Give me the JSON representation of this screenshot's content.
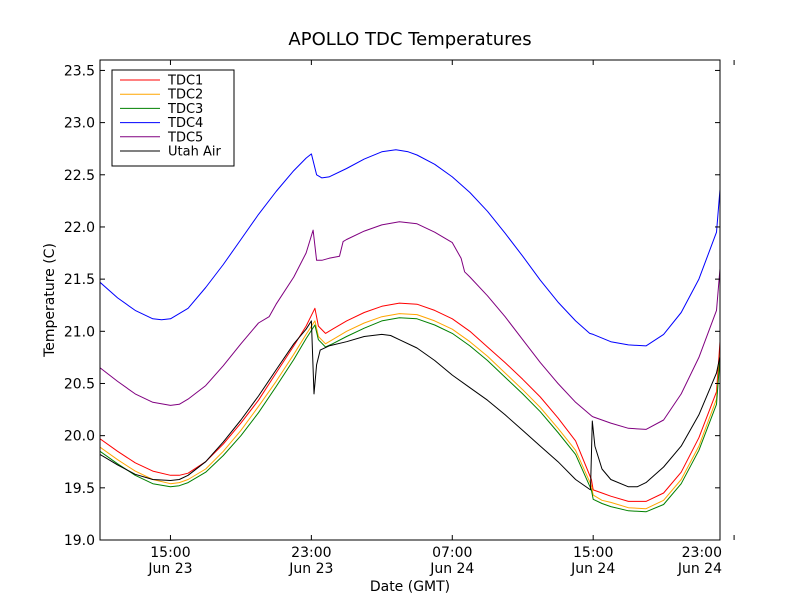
{
  "chart_data": {
    "type": "line",
    "title": "APOLLO TDC Temperatures",
    "xlabel": "Date (GMT)",
    "ylabel": "Temperature (C)",
    "xlim": [
      11,
      46.2
    ],
    "ylim": [
      19.0,
      23.6
    ],
    "x_ticks": [
      {
        "x": 15,
        "time": "15:00",
        "date": "Jun 23"
      },
      {
        "x": 23,
        "time": "23:00",
        "date": "Jun 23"
      },
      {
        "x": 31,
        "time": "07:00",
        "date": "Jun 24"
      },
      {
        "x": 39,
        "time": "15:00",
        "date": "Jun 24"
      },
      {
        "x": 47,
        "time": "23:00",
        "date": "Jun 24"
      }
    ],
    "y_ticks": [
      {
        "value": 19.0,
        "label": "19.0"
      },
      {
        "value": 19.5,
        "label": "19.5"
      },
      {
        "value": 20.0,
        "label": "20.0"
      },
      {
        "value": 20.5,
        "label": "20.5"
      },
      {
        "value": 21.0,
        "label": "21.0"
      },
      {
        "value": 21.5,
        "label": "21.5"
      },
      {
        "value": 22.0,
        "label": "22.0"
      },
      {
        "value": 22.5,
        "label": "22.5"
      },
      {
        "value": 23.0,
        "label": "23.0"
      },
      {
        "value": 23.5,
        "label": "23.5"
      }
    ],
    "x_unit": "hours since 00:00 Jun 23 (GMT)",
    "legend_position": "top-left",
    "series": [
      {
        "name": "TDC1",
        "color": "#ff0000",
        "points": [
          [
            11,
            19.97
          ],
          [
            12,
            19.85
          ],
          [
            13,
            19.74
          ],
          [
            14,
            19.66
          ],
          [
            15,
            19.62
          ],
          [
            15.5,
            19.62
          ],
          [
            16,
            19.64
          ],
          [
            17,
            19.75
          ],
          [
            18,
            19.92
          ],
          [
            19,
            20.12
          ],
          [
            20,
            20.34
          ],
          [
            21,
            20.6
          ],
          [
            22,
            20.86
          ],
          [
            22.7,
            21.05
          ],
          [
            23.2,
            21.22
          ],
          [
            23.4,
            21.05
          ],
          [
            23.8,
            20.98
          ],
          [
            24.2,
            21.02
          ],
          [
            25,
            21.1
          ],
          [
            26,
            21.18
          ],
          [
            27,
            21.24
          ],
          [
            28,
            21.27
          ],
          [
            29,
            21.26
          ],
          [
            30,
            21.2
          ],
          [
            31,
            21.12
          ],
          [
            32,
            21.0
          ],
          [
            33,
            20.85
          ],
          [
            34,
            20.7
          ],
          [
            35,
            20.54
          ],
          [
            36,
            20.37
          ],
          [
            37,
            20.17
          ],
          [
            38,
            19.95
          ],
          [
            38.9,
            19.58
          ],
          [
            39,
            19.48
          ],
          [
            39.5,
            19.45
          ],
          [
            40,
            19.42
          ],
          [
            41,
            19.37
          ],
          [
            42,
            19.37
          ],
          [
            43,
            19.45
          ],
          [
            44,
            19.65
          ],
          [
            45,
            19.98
          ],
          [
            46,
            20.42
          ],
          [
            46.2,
            20.9
          ]
        ]
      },
      {
        "name": "TDC2",
        "color": "#ffa500",
        "points": [
          [
            11,
            19.89
          ],
          [
            12,
            19.77
          ],
          [
            13,
            19.66
          ],
          [
            14,
            19.58
          ],
          [
            15,
            19.54
          ],
          [
            15.5,
            19.55
          ],
          [
            16,
            19.58
          ],
          [
            17,
            19.68
          ],
          [
            18,
            19.85
          ],
          [
            19,
            20.05
          ],
          [
            20,
            20.28
          ],
          [
            21,
            20.52
          ],
          [
            22,
            20.78
          ],
          [
            22.7,
            20.97
          ],
          [
            23.2,
            21.1
          ],
          [
            23.4,
            20.95
          ],
          [
            23.8,
            20.88
          ],
          [
            24.2,
            20.92
          ],
          [
            25,
            21.0
          ],
          [
            26,
            21.08
          ],
          [
            27,
            21.14
          ],
          [
            28,
            21.17
          ],
          [
            29,
            21.16
          ],
          [
            30,
            21.1
          ],
          [
            31,
            21.02
          ],
          [
            32,
            20.9
          ],
          [
            33,
            20.76
          ],
          [
            34,
            20.6
          ],
          [
            35,
            20.44
          ],
          [
            36,
            20.27
          ],
          [
            37,
            20.07
          ],
          [
            38,
            19.86
          ],
          [
            38.9,
            19.52
          ],
          [
            39,
            19.43
          ],
          [
            39.5,
            19.38
          ],
          [
            40,
            19.36
          ],
          [
            41,
            19.31
          ],
          [
            42,
            19.3
          ],
          [
            43,
            19.38
          ],
          [
            44,
            19.58
          ],
          [
            45,
            19.9
          ],
          [
            46,
            20.35
          ],
          [
            46.2,
            20.8
          ]
        ]
      },
      {
        "name": "TDC3",
        "color": "#008000",
        "points": [
          [
            11,
            19.85
          ],
          [
            12,
            19.73
          ],
          [
            13,
            19.62
          ],
          [
            14,
            19.54
          ],
          [
            15,
            19.51
          ],
          [
            15.5,
            19.52
          ],
          [
            16,
            19.55
          ],
          [
            17,
            19.65
          ],
          [
            18,
            19.81
          ],
          [
            19,
            20.0
          ],
          [
            20,
            20.22
          ],
          [
            21,
            20.47
          ],
          [
            22,
            20.73
          ],
          [
            22.7,
            20.93
          ],
          [
            23.2,
            21.06
          ],
          [
            23.4,
            20.92
          ],
          [
            23.8,
            20.85
          ],
          [
            24.2,
            20.88
          ],
          [
            25,
            20.95
          ],
          [
            26,
            21.03
          ],
          [
            27,
            21.1
          ],
          [
            28,
            21.13
          ],
          [
            29,
            21.12
          ],
          [
            30,
            21.06
          ],
          [
            31,
            20.98
          ],
          [
            32,
            20.86
          ],
          [
            33,
            20.72
          ],
          [
            34,
            20.56
          ],
          [
            35,
            20.4
          ],
          [
            36,
            20.23
          ],
          [
            37,
            20.03
          ],
          [
            38,
            19.82
          ],
          [
            38.9,
            19.48
          ],
          [
            39,
            19.39
          ],
          [
            39.5,
            19.35
          ],
          [
            40,
            19.32
          ],
          [
            41,
            19.28
          ],
          [
            42,
            19.27
          ],
          [
            43,
            19.34
          ],
          [
            44,
            19.54
          ],
          [
            45,
            19.86
          ],
          [
            46,
            20.3
          ],
          [
            46.2,
            20.75
          ]
        ]
      },
      {
        "name": "TDC4",
        "color": "#0000ff",
        "points": [
          [
            11,
            21.47
          ],
          [
            12,
            21.32
          ],
          [
            13,
            21.2
          ],
          [
            14,
            21.12
          ],
          [
            14.5,
            21.11
          ],
          [
            15,
            21.12
          ],
          [
            16,
            21.22
          ],
          [
            17,
            21.42
          ],
          [
            18,
            21.64
          ],
          [
            19,
            21.88
          ],
          [
            20,
            22.12
          ],
          [
            21,
            22.34
          ],
          [
            22,
            22.54
          ],
          [
            22.7,
            22.66
          ],
          [
            23,
            22.7
          ],
          [
            23.3,
            22.5
          ],
          [
            23.6,
            22.47
          ],
          [
            24,
            22.48
          ],
          [
            25,
            22.56
          ],
          [
            26,
            22.65
          ],
          [
            27,
            22.72
          ],
          [
            27.8,
            22.74
          ],
          [
            28.5,
            22.72
          ],
          [
            29,
            22.69
          ],
          [
            30,
            22.6
          ],
          [
            31,
            22.48
          ],
          [
            32,
            22.33
          ],
          [
            33,
            22.15
          ],
          [
            34,
            21.94
          ],
          [
            35,
            21.72
          ],
          [
            36,
            21.49
          ],
          [
            37,
            21.28
          ],
          [
            38,
            21.1
          ],
          [
            38.8,
            20.98
          ],
          [
            39,
            20.97
          ],
          [
            40,
            20.9
          ],
          [
            41,
            20.87
          ],
          [
            42,
            20.86
          ],
          [
            43,
            20.97
          ],
          [
            44,
            21.18
          ],
          [
            45,
            21.5
          ],
          [
            46,
            21.95
          ],
          [
            46.2,
            22.36
          ]
        ]
      },
      {
        "name": "TDC5",
        "color": "#800080",
        "points": [
          [
            11,
            20.65
          ],
          [
            12,
            20.52
          ],
          [
            13,
            20.4
          ],
          [
            14,
            20.32
          ],
          [
            15,
            20.29
          ],
          [
            15.5,
            20.3
          ],
          [
            16,
            20.35
          ],
          [
            17,
            20.48
          ],
          [
            18,
            20.67
          ],
          [
            19,
            20.88
          ],
          [
            20,
            21.08
          ],
          [
            20.6,
            21.14
          ],
          [
            21,
            21.26
          ],
          [
            22,
            21.52
          ],
          [
            22.7,
            21.75
          ],
          [
            23.1,
            21.97
          ],
          [
            23.3,
            21.68
          ],
          [
            23.6,
            21.68
          ],
          [
            24,
            21.7
          ],
          [
            24.6,
            21.72
          ],
          [
            24.8,
            21.86
          ],
          [
            25,
            21.88
          ],
          [
            26,
            21.96
          ],
          [
            27,
            22.02
          ],
          [
            28,
            22.05
          ],
          [
            29,
            22.03
          ],
          [
            30,
            21.95
          ],
          [
            31,
            21.85
          ],
          [
            31.5,
            21.7
          ],
          [
            31.7,
            21.57
          ],
          [
            32,
            21.52
          ],
          [
            33,
            21.34
          ],
          [
            34,
            21.14
          ],
          [
            35,
            20.92
          ],
          [
            36,
            20.7
          ],
          [
            37,
            20.5
          ],
          [
            38,
            20.32
          ],
          [
            38.9,
            20.19
          ],
          [
            39,
            20.18
          ],
          [
            40,
            20.12
          ],
          [
            41,
            20.07
          ],
          [
            42,
            20.06
          ],
          [
            43,
            20.15
          ],
          [
            44,
            20.4
          ],
          [
            45,
            20.75
          ],
          [
            46,
            21.2
          ],
          [
            46.2,
            21.6
          ]
        ]
      },
      {
        "name": "Utah Air",
        "color": "#000000",
        "points": [
          [
            11,
            19.82
          ],
          [
            12,
            19.72
          ],
          [
            13,
            19.63
          ],
          [
            14,
            19.58
          ],
          [
            15,
            19.57
          ],
          [
            15.5,
            19.58
          ],
          [
            16,
            19.62
          ],
          [
            17,
            19.75
          ],
          [
            18,
            19.94
          ],
          [
            19,
            20.15
          ],
          [
            20,
            20.38
          ],
          [
            21,
            20.63
          ],
          [
            22,
            20.88
          ],
          [
            22.7,
            21.02
          ],
          [
            23,
            21.1
          ],
          [
            23.15,
            20.4
          ],
          [
            23.3,
            20.68
          ],
          [
            23.5,
            20.82
          ],
          [
            24,
            20.86
          ],
          [
            25,
            20.9
          ],
          [
            26,
            20.95
          ],
          [
            27,
            20.97
          ],
          [
            27.5,
            20.96
          ],
          [
            28,
            20.92
          ],
          [
            29,
            20.84
          ],
          [
            30,
            20.72
          ],
          [
            31,
            20.58
          ],
          [
            32,
            20.46
          ],
          [
            33,
            20.34
          ],
          [
            34,
            20.2
          ],
          [
            35,
            20.05
          ],
          [
            36,
            19.9
          ],
          [
            37,
            19.75
          ],
          [
            38,
            19.58
          ],
          [
            38.85,
            19.48
          ],
          [
            38.95,
            20.14
          ],
          [
            39.1,
            19.9
          ],
          [
            39.5,
            19.68
          ],
          [
            40,
            19.58
          ],
          [
            41,
            19.51
          ],
          [
            41.5,
            19.51
          ],
          [
            42,
            19.55
          ],
          [
            43,
            19.7
          ],
          [
            44,
            19.9
          ],
          [
            45,
            20.2
          ],
          [
            46,
            20.6
          ],
          [
            46.2,
            20.76
          ]
        ]
      }
    ]
  }
}
